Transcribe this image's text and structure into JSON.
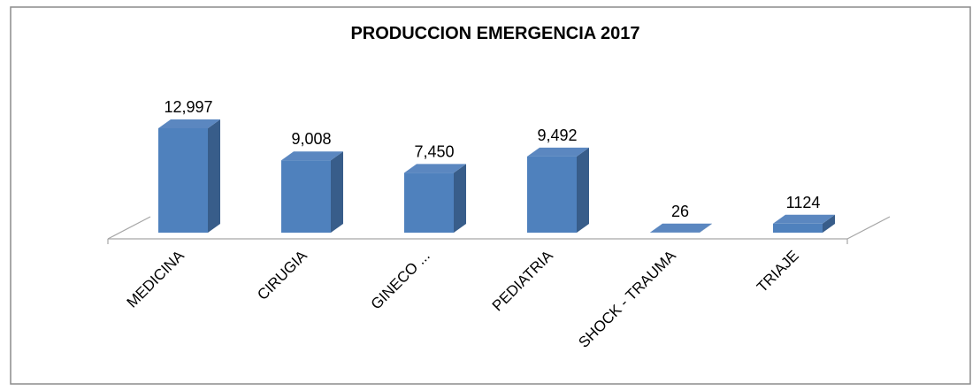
{
  "chart_data": {
    "type": "bar3d",
    "title": "PRODUCCION EMERGENCIA 2017",
    "categories": [
      "MEDICINA",
      "CIRUGIA",
      "GINECO ...",
      "PEDIATRIA",
      "SHOCK - TRAUMA",
      "TRIAJE"
    ],
    "values": [
      12997,
      9008,
      7450,
      9492,
      26,
      1124
    ],
    "value_labels": [
      "12,997",
      "9,008",
      "7,450",
      "9,492",
      "26",
      "1124"
    ],
    "color": "#4f81bd"
  }
}
